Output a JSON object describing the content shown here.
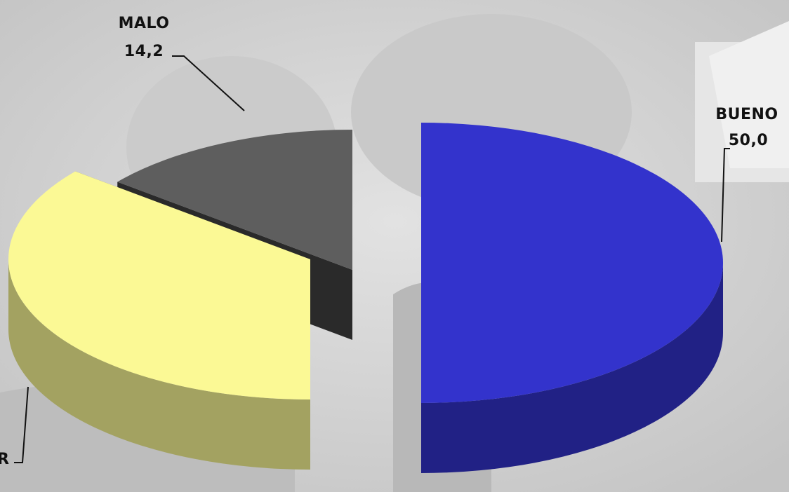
{
  "chart_data": {
    "type": "pie",
    "style": "3d-exploded",
    "slices": [
      {
        "label": "BUENO",
        "value": 50.0,
        "value_text": "50,0",
        "color": "#3333cc"
      },
      {
        "label": "REGULAR",
        "value": 35.8,
        "value_text": "",
        "color": "#fbf995"
      },
      {
        "label": "MALO",
        "value": 14.2,
        "value_text": "14,2",
        "color": "#5e5e5e"
      }
    ],
    "labels_visible": {
      "bueno_name": "BUENO",
      "bueno_value": "50,0",
      "malo_name": "MALO",
      "malo_value": "14,2",
      "regular_partial": "R"
    },
    "background": "grayscale photograph"
  }
}
